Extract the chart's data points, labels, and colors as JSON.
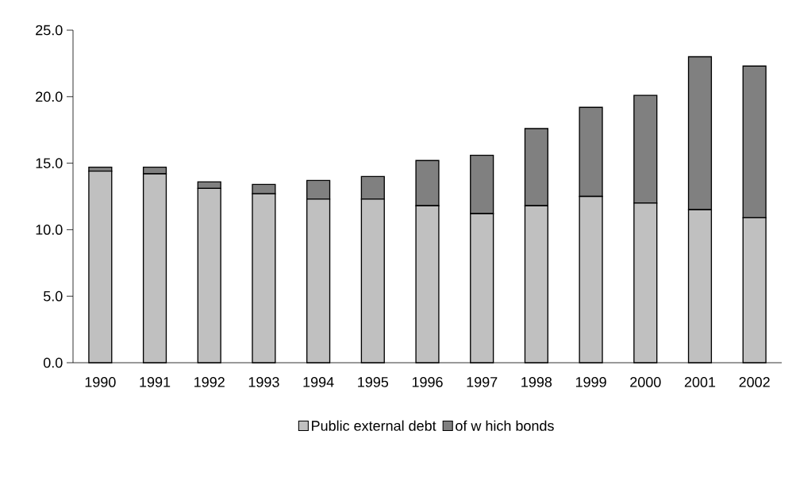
{
  "chart_data": {
    "type": "bar",
    "stacked": true,
    "categories": [
      "1990",
      "1991",
      "1992",
      "1993",
      "1994",
      "1995",
      "1996",
      "1997",
      "1998",
      "1999",
      "2000",
      "2001",
      "2002"
    ],
    "series": [
      {
        "name": "Public external debt",
        "color": "#c0c0c0",
        "values": [
          14.4,
          14.2,
          13.1,
          12.7,
          12.3,
          12.3,
          11.8,
          11.2,
          11.8,
          12.5,
          12.0,
          11.5,
          10.9
        ]
      },
      {
        "name": "of w hich bonds",
        "color": "#808080",
        "values": [
          0.3,
          0.5,
          0.5,
          0.7,
          1.4,
          1.7,
          3.4,
          4.4,
          5.8,
          6.7,
          8.1,
          11.5,
          11.4
        ]
      }
    ],
    "ylim": [
      0,
      25
    ],
    "yticks": [
      {
        "value": 0,
        "label": "0.0"
      },
      {
        "value": 5,
        "label": "5.0"
      },
      {
        "value": 10,
        "label": "10.0"
      },
      {
        "value": 15,
        "label": "15.0"
      },
      {
        "value": 20,
        "label": "20.0"
      },
      {
        "value": 25,
        "label": "25.0"
      }
    ],
    "grid": false,
    "legend": "bottom"
  }
}
